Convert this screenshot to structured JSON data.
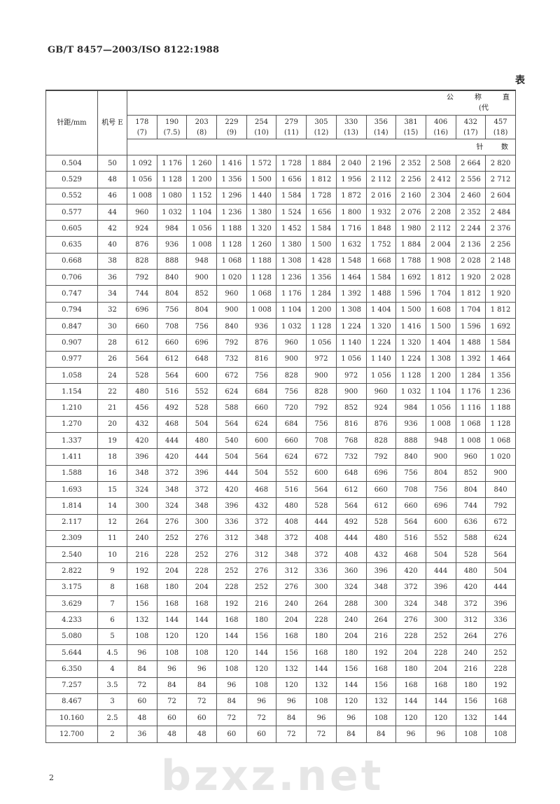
{
  "header": {
    "standard_no": "GB/T 8457—2003/ISO 8122:1988",
    "table_caption": "表"
  },
  "watermark": "bzxz.net",
  "table": {
    "col_pitch": "针距/mm",
    "col_gauge": "机号 E",
    "group_title": [
      "公",
      "称",
      "直"
    ],
    "group_subtitle": "(代",
    "needle_label": [
      "针",
      "数"
    ],
    "sizes": [
      {
        "mm": "178",
        "inch": "(7)"
      },
      {
        "mm": "190",
        "inch": "(7.5)"
      },
      {
        "mm": "203",
        "inch": "(8)"
      },
      {
        "mm": "229",
        "inch": "(9)"
      },
      {
        "mm": "254",
        "inch": "(10)"
      },
      {
        "mm": "279",
        "inch": "(11)"
      },
      {
        "mm": "305",
        "inch": "(12)"
      },
      {
        "mm": "330",
        "inch": "(13)"
      },
      {
        "mm": "356",
        "inch": "(14)"
      },
      {
        "mm": "381",
        "inch": "(15)"
      },
      {
        "mm": "406",
        "inch": "(16)"
      },
      {
        "mm": "432",
        "inch": "(17)"
      },
      {
        "mm": "457",
        "inch": "(18)"
      }
    ],
    "rows": [
      {
        "pitch": "0.504",
        "gauge": "50",
        "values": [
          "1 092",
          "1 176",
          "1 260",
          "1 416",
          "1 572",
          "1 728",
          "1 884",
          "2 040",
          "2 196",
          "2 352",
          "2 508",
          "2 664",
          "2 820"
        ]
      },
      {
        "pitch": "0.529",
        "gauge": "48",
        "values": [
          "1 056",
          "1 128",
          "1 200",
          "1 356",
          "1 500",
          "1 656",
          "1 812",
          "1 956",
          "2 112",
          "2 256",
          "2 412",
          "2 556",
          "2 712"
        ]
      },
      {
        "pitch": "0.552",
        "gauge": "46",
        "values": [
          "1 008",
          "1 080",
          "1 152",
          "1 296",
          "1 440",
          "1 584",
          "1 728",
          "1 872",
          "2 016",
          "2 160",
          "2 304",
          "2 460",
          "2 604"
        ]
      },
      {
        "pitch": "0.577",
        "gauge": "44",
        "values": [
          "960",
          "1 032",
          "1 104",
          "1 236",
          "1 380",
          "1 524",
          "1 656",
          "1 800",
          "1 932",
          "2 076",
          "2 208",
          "2 352",
          "2 484"
        ]
      },
      {
        "pitch": "0.605",
        "gauge": "42",
        "values": [
          "924",
          "984",
          "1 056",
          "1 188",
          "1 320",
          "1 452",
          "1 584",
          "1 716",
          "1 848",
          "1 980",
          "2 112",
          "2 244",
          "2 376"
        ]
      },
      {
        "pitch": "0.635",
        "gauge": "40",
        "values": [
          "876",
          "936",
          "1 008",
          "1 128",
          "1 260",
          "1 380",
          "1 500",
          "1 632",
          "1 752",
          "1 884",
          "2 004",
          "2 136",
          "2 256"
        ]
      },
      {
        "pitch": "0.668",
        "gauge": "38",
        "values": [
          "828",
          "888",
          "948",
          "1 068",
          "1 188",
          "1 308",
          "1 428",
          "1 548",
          "1 668",
          "1 788",
          "1 908",
          "2 028",
          "2 148"
        ]
      },
      {
        "pitch": "0.706",
        "gauge": "36",
        "values": [
          "792",
          "840",
          "900",
          "1 020",
          "1 128",
          "1 236",
          "1 356",
          "1 464",
          "1 584",
          "1 692",
          "1 812",
          "1 920",
          "2 028"
        ]
      },
      {
        "pitch": "0.747",
        "gauge": "34",
        "values": [
          "744",
          "804",
          "852",
          "960",
          "1 068",
          "1 176",
          "1 284",
          "1 392",
          "1 488",
          "1 596",
          "1 704",
          "1 812",
          "1 920"
        ]
      },
      {
        "pitch": "0.794",
        "gauge": "32",
        "values": [
          "696",
          "756",
          "804",
          "900",
          "1 008",
          "1 104",
          "1 200",
          "1 308",
          "1 404",
          "1 500",
          "1 608",
          "1 704",
          "1 812"
        ]
      },
      {
        "pitch": "0.847",
        "gauge": "30",
        "values": [
          "660",
          "708",
          "756",
          "840",
          "936",
          "1 032",
          "1 128",
          "1 224",
          "1 320",
          "1 416",
          "1 500",
          "1 596",
          "1 692"
        ]
      },
      {
        "pitch": "0.907",
        "gauge": "28",
        "values": [
          "612",
          "660",
          "696",
          "792",
          "876",
          "960",
          "1 056",
          "1 140",
          "1 224",
          "1 320",
          "1 404",
          "1 488",
          "1 584"
        ]
      },
      {
        "pitch": "0.977",
        "gauge": "26",
        "values": [
          "564",
          "612",
          "648",
          "732",
          "816",
          "900",
          "972",
          "1 056",
          "1 140",
          "1 224",
          "1 308",
          "1 392",
          "1 464"
        ]
      },
      {
        "pitch": "1.058",
        "gauge": "24",
        "values": [
          "528",
          "564",
          "600",
          "672",
          "756",
          "828",
          "900",
          "972",
          "1 056",
          "1 128",
          "1 200",
          "1 284",
          "1 356"
        ]
      },
      {
        "pitch": "1.154",
        "gauge": "22",
        "values": [
          "480",
          "516",
          "552",
          "624",
          "684",
          "756",
          "828",
          "900",
          "960",
          "1 032",
          "1 104",
          "1 176",
          "1 236"
        ]
      },
      {
        "pitch": "1.210",
        "gauge": "21",
        "values": [
          "456",
          "492",
          "528",
          "588",
          "660",
          "720",
          "792",
          "852",
          "924",
          "984",
          "1 056",
          "1 116",
          "1 188"
        ]
      },
      {
        "pitch": "1.270",
        "gauge": "20",
        "values": [
          "432",
          "468",
          "504",
          "564",
          "624",
          "684",
          "756",
          "816",
          "876",
          "936",
          "1 008",
          "1 068",
          "1 128"
        ]
      },
      {
        "pitch": "1.337",
        "gauge": "19",
        "values": [
          "420",
          "444",
          "480",
          "540",
          "600",
          "660",
          "708",
          "768",
          "828",
          "888",
          "948",
          "1 008",
          "1 068"
        ]
      },
      {
        "pitch": "1.411",
        "gauge": "18",
        "values": [
          "396",
          "420",
          "444",
          "504",
          "564",
          "624",
          "672",
          "732",
          "792",
          "840",
          "900",
          "960",
          "1 020"
        ]
      },
      {
        "pitch": "1.588",
        "gauge": "16",
        "values": [
          "348",
          "372",
          "396",
          "444",
          "504",
          "552",
          "600",
          "648",
          "696",
          "756",
          "804",
          "852",
          "900"
        ]
      },
      {
        "pitch": "1.693",
        "gauge": "15",
        "values": [
          "324",
          "348",
          "372",
          "420",
          "468",
          "516",
          "564",
          "612",
          "660",
          "708",
          "756",
          "804",
          "840"
        ]
      },
      {
        "pitch": "1.814",
        "gauge": "14",
        "values": [
          "300",
          "324",
          "348",
          "396",
          "432",
          "480",
          "528",
          "564",
          "612",
          "660",
          "696",
          "744",
          "792"
        ]
      },
      {
        "pitch": "2.117",
        "gauge": "12",
        "values": [
          "264",
          "276",
          "300",
          "336",
          "372",
          "408",
          "444",
          "492",
          "528",
          "564",
          "600",
          "636",
          "672"
        ]
      },
      {
        "pitch": "2.309",
        "gauge": "11",
        "values": [
          "240",
          "252",
          "276",
          "312",
          "348",
          "372",
          "408",
          "444",
          "480",
          "516",
          "552",
          "588",
          "624"
        ]
      },
      {
        "pitch": "2.540",
        "gauge": "10",
        "values": [
          "216",
          "228",
          "252",
          "276",
          "312",
          "348",
          "372",
          "408",
          "432",
          "468",
          "504",
          "528",
          "564"
        ]
      },
      {
        "pitch": "2.822",
        "gauge": "9",
        "values": [
          "192",
          "204",
          "228",
          "252",
          "276",
          "312",
          "336",
          "360",
          "396",
          "420",
          "444",
          "480",
          "504"
        ]
      },
      {
        "pitch": "3.175",
        "gauge": "8",
        "values": [
          "168",
          "180",
          "204",
          "228",
          "252",
          "276",
          "300",
          "324",
          "348",
          "372",
          "396",
          "420",
          "444"
        ]
      },
      {
        "pitch": "3.629",
        "gauge": "7",
        "values": [
          "156",
          "168",
          "168",
          "192",
          "216",
          "240",
          "264",
          "288",
          "300",
          "324",
          "348",
          "372",
          "396"
        ]
      },
      {
        "pitch": "4.233",
        "gauge": "6",
        "values": [
          "132",
          "144",
          "144",
          "168",
          "180",
          "204",
          "228",
          "240",
          "264",
          "276",
          "300",
          "312",
          "336"
        ]
      },
      {
        "pitch": "5.080",
        "gauge": "5",
        "values": [
          "108",
          "120",
          "120",
          "144",
          "156",
          "168",
          "180",
          "204",
          "216",
          "228",
          "252",
          "264",
          "276"
        ]
      },
      {
        "pitch": "5.644",
        "gauge": "4.5",
        "values": [
          "96",
          "108",
          "108",
          "120",
          "144",
          "156",
          "168",
          "180",
          "192",
          "204",
          "228",
          "240",
          "252"
        ]
      },
      {
        "pitch": "6.350",
        "gauge": "4",
        "values": [
          "84",
          "96",
          "96",
          "108",
          "120",
          "132",
          "144",
          "156",
          "168",
          "180",
          "204",
          "216",
          "228"
        ]
      },
      {
        "pitch": "7.257",
        "gauge": "3.5",
        "values": [
          "72",
          "84",
          "84",
          "96",
          "108",
          "120",
          "132",
          "144",
          "156",
          "168",
          "168",
          "180",
          "192"
        ]
      },
      {
        "pitch": "8.467",
        "gauge": "3",
        "values": [
          "60",
          "72",
          "72",
          "84",
          "96",
          "96",
          "108",
          "120",
          "132",
          "144",
          "144",
          "156",
          "168"
        ]
      },
      {
        "pitch": "10.160",
        "gauge": "2.5",
        "values": [
          "48",
          "60",
          "60",
          "72",
          "72",
          "84",
          "96",
          "96",
          "108",
          "120",
          "120",
          "132",
          "144"
        ]
      },
      {
        "pitch": "12.700",
        "gauge": "2",
        "values": [
          "36",
          "48",
          "48",
          "60",
          "60",
          "72",
          "72",
          "84",
          "84",
          "96",
          "96",
          "108",
          "108"
        ]
      }
    ]
  },
  "footer": {
    "page_number": "2"
  }
}
